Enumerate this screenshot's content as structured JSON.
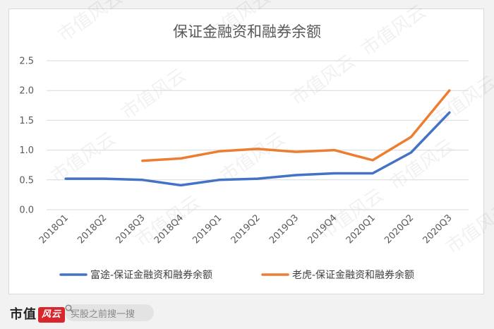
{
  "chart_data": {
    "type": "line",
    "title": "保证金融资和融券余额",
    "categories": [
      "2018Q1",
      "2018Q2",
      "2018Q3",
      "2018Q4",
      "2019Q1",
      "2019Q2",
      "2019Q3",
      "2019Q4",
      "2020Q1",
      "2020Q2",
      "2020Q3"
    ],
    "ylim": [
      0,
      2.5
    ],
    "yticks": [
      "0.0",
      "0.5",
      "1.0",
      "1.5",
      "2.0",
      "2.5"
    ],
    "grid": true,
    "legend_position": "bottom",
    "series": [
      {
        "name": "富途-保证金融资和融券余额",
        "color": "#4472c4",
        "values": [
          0.52,
          0.52,
          0.5,
          0.41,
          0.5,
          0.52,
          0.58,
          0.61,
          0.61,
          0.96,
          1.63
        ]
      },
      {
        "name": "老虎-保证金融资和融券余额",
        "color": "#ed7d31",
        "values": [
          null,
          null,
          0.82,
          0.86,
          0.98,
          1.02,
          0.97,
          1.0,
          0.83,
          1.22,
          2.0
        ]
      }
    ]
  },
  "watermark": "市值风云",
  "footer": {
    "brand": "市值",
    "brand_badge": "风云",
    "search_placeholder": "买股之前搜一搜"
  }
}
